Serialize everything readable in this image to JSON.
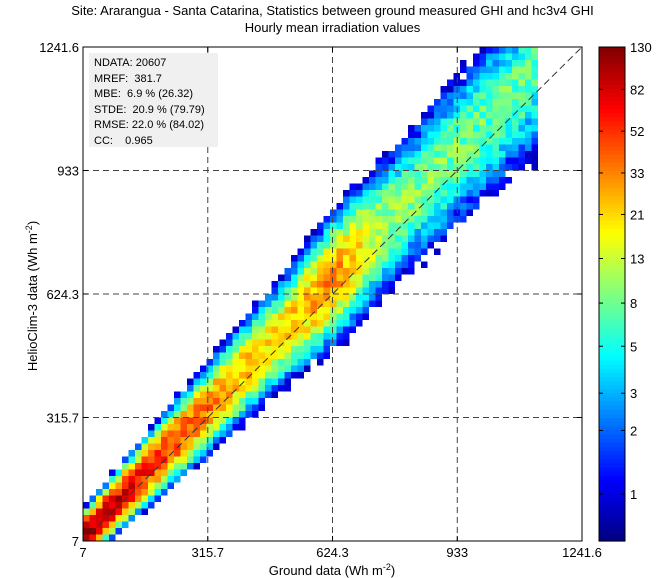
{
  "title_line1": "Site: Ararangua - Santa Catarina, Statistics between ground measured GHI and hc3v4 GHI",
  "title_line2": "Hourly mean irradiation values",
  "stats": [
    {
      "label": "NDATA:",
      "value": " 20607"
    },
    {
      "label": "MREF:",
      "value": "  381.7"
    },
    {
      "label": "MBE:",
      "value": "  6.9 % (26.32)"
    },
    {
      "label": "STDE:",
      "value": "  20.9 % (79.79)"
    },
    {
      "label": "RMSE:",
      "value": " 22.0 % (84.02)"
    },
    {
      "label": "CC:",
      "value": "    0.965"
    }
  ],
  "chart_data": {
    "type": "heatmap",
    "title": "Site: Ararangua - Santa Catarina, Statistics between ground measured GHI and hc3v4 GHI",
    "subtitle": "Hourly mean irradiation values",
    "xlabel": "Ground data (Wh m",
    "xlabel_sup": "-2",
    "xlabel_end": ")",
    "ylabel": "HelioClim-3 data (Wh m",
    "ylabel_sup": "-2",
    "ylabel_end": ")",
    "xlim": [
      7,
      1241.6
    ],
    "ylim": [
      7,
      1241.6
    ],
    "x_ticks": [
      7,
      315.7,
      624.3,
      933,
      1241.6
    ],
    "y_ticks": [
      7,
      315.7,
      624.3,
      933,
      1241.6
    ],
    "x_tick_labels": [
      "7",
      "315.7",
      "624.3",
      "933",
      "1241.6"
    ],
    "y_tick_labels": [
      "7",
      "315.7",
      "624.3",
      "933",
      "1241.6"
    ],
    "grid": true,
    "diagonal_reference": true,
    "colorbar": {
      "scale": "log",
      "ticks": [
        1,
        2,
        3,
        5,
        8,
        13,
        21,
        33,
        52,
        82,
        130
      ],
      "tick_labels": [
        "1",
        "2",
        "3",
        "5",
        "8",
        "13",
        "21",
        "33",
        "52",
        "82",
        "130"
      ],
      "range": [
        0.6,
        130
      ]
    },
    "density_model": {
      "bias_slope": 1.04,
      "spread_fraction": 0.07,
      "spread_floor": 14,
      "peak_count": 130,
      "x_max_data": 1135
    }
  }
}
